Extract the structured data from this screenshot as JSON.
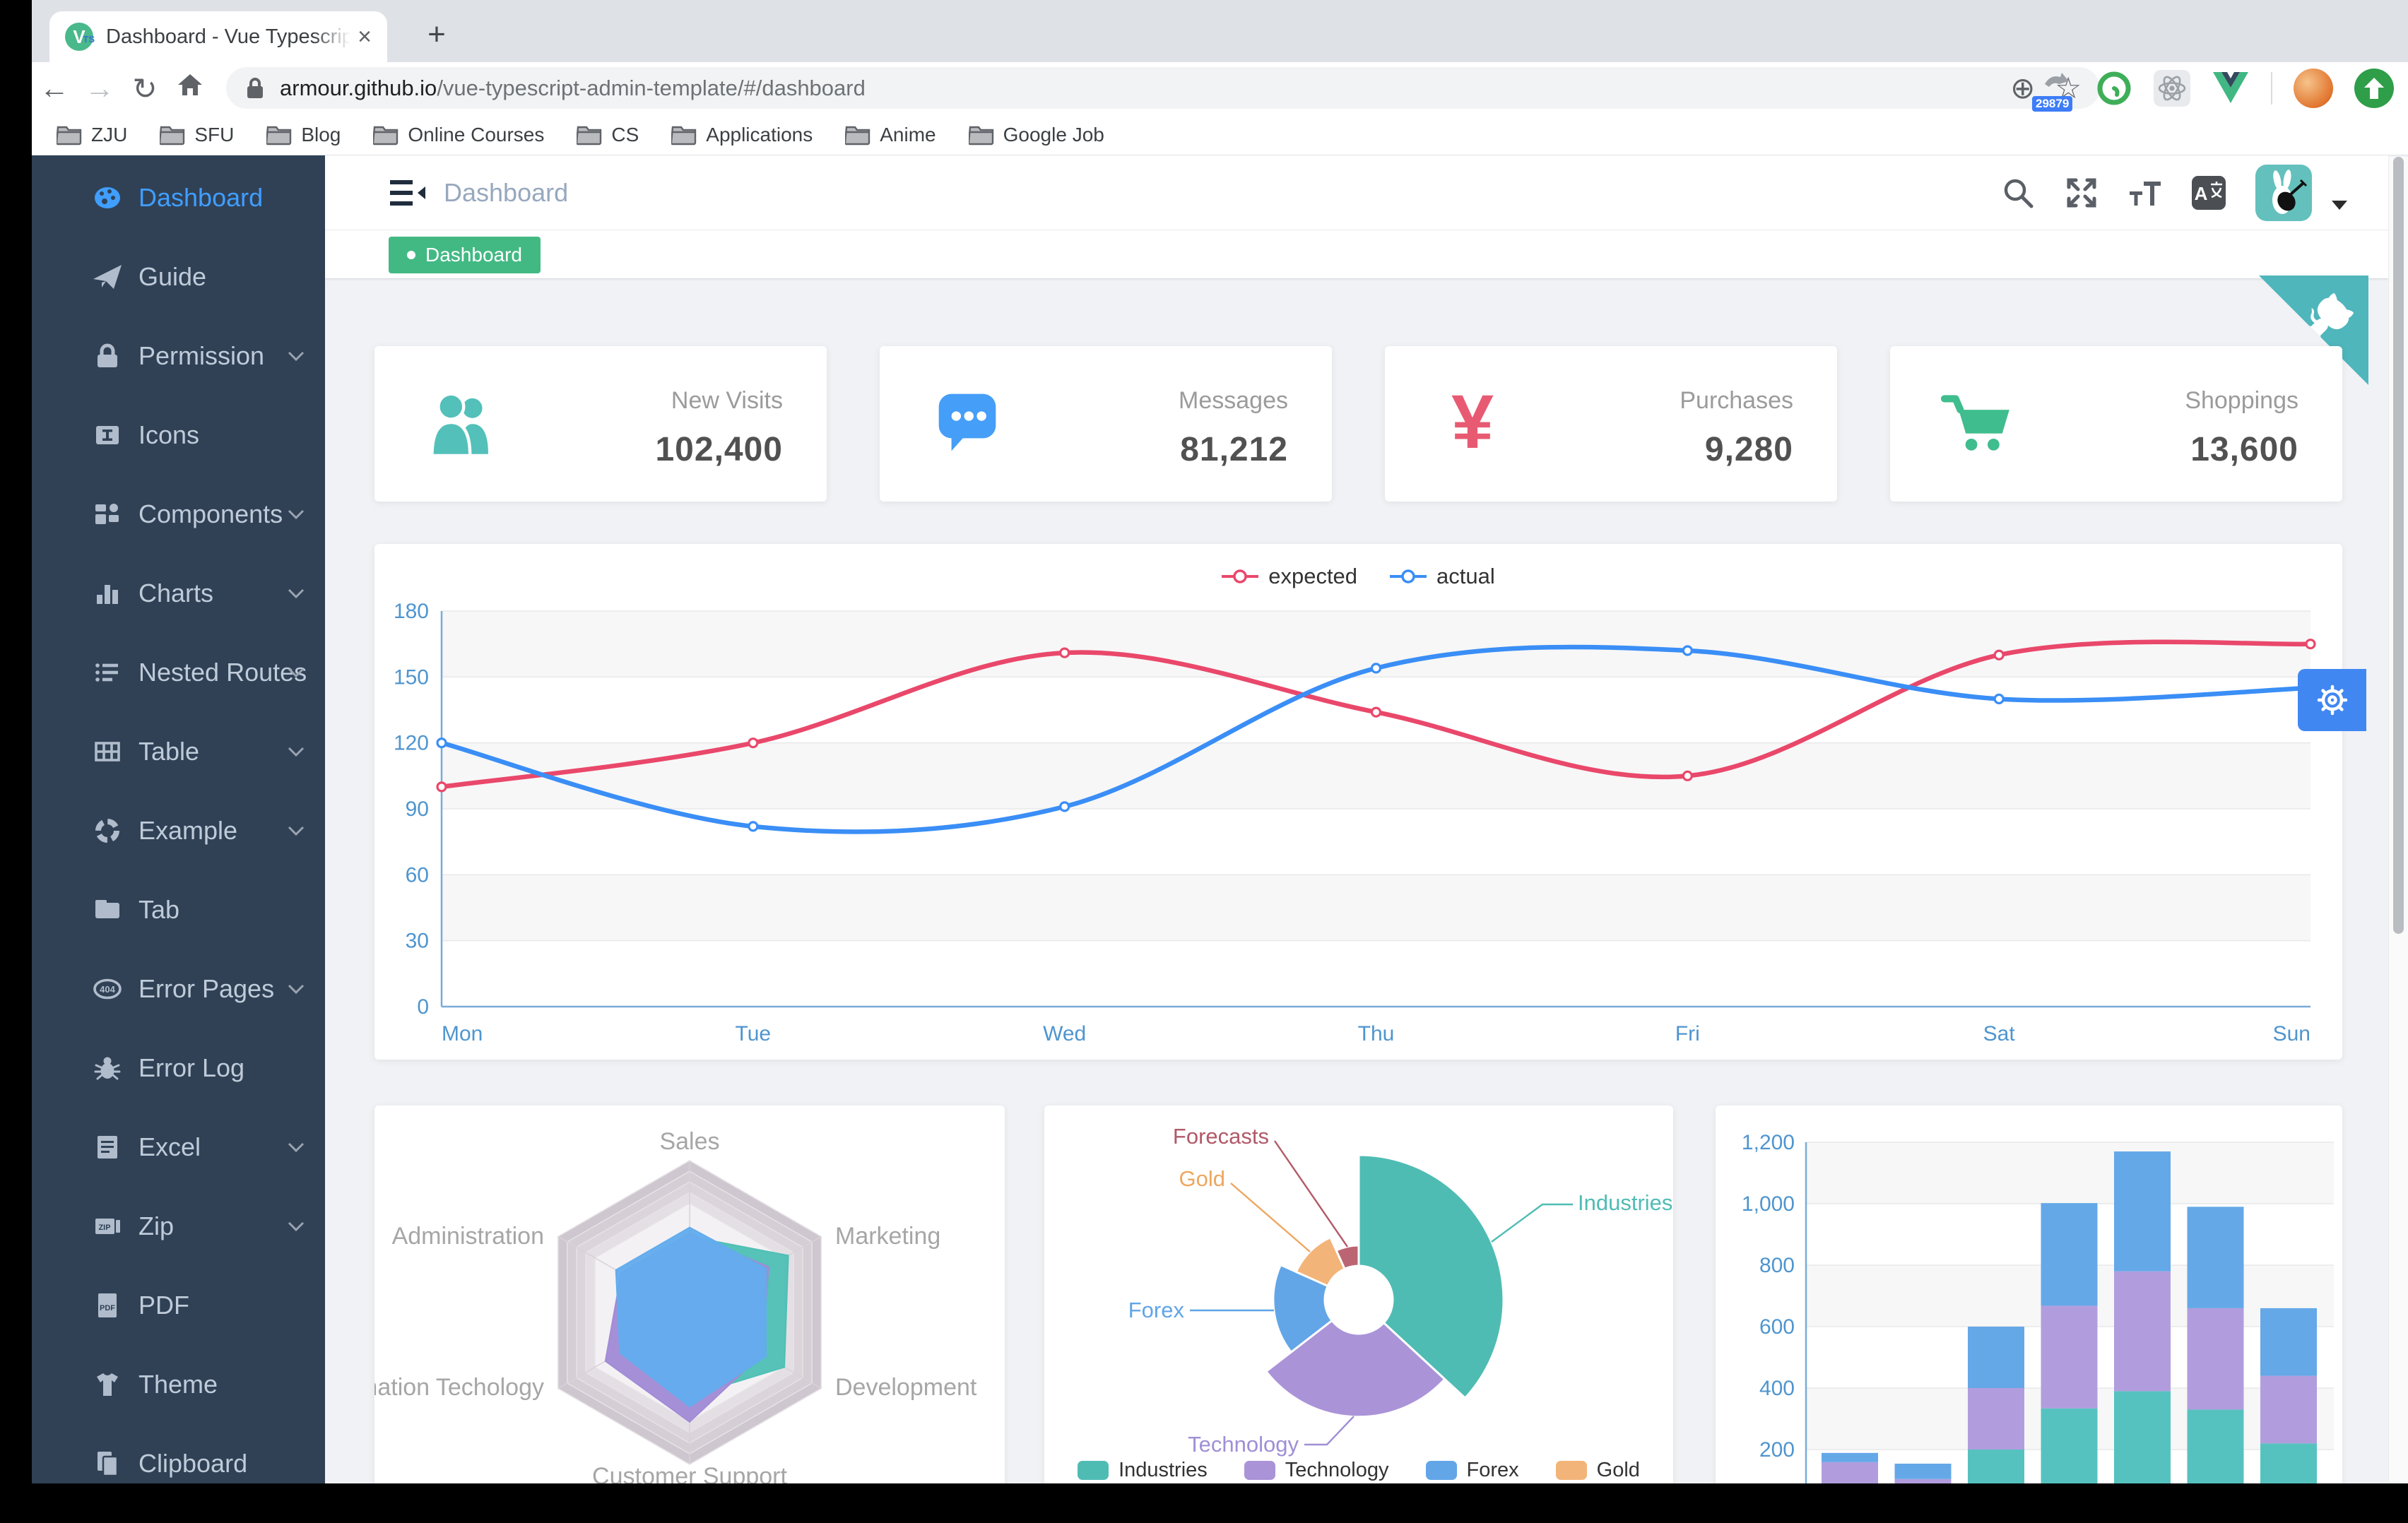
{
  "browser": {
    "tab_title": "Dashboard - Vue Typescript Ad",
    "tab_close_glyph": "×",
    "new_tab_glyph": "+",
    "back_glyph": "←",
    "forward_glyph": "→",
    "reload_glyph": "↻",
    "url_domain": "armour.github.io",
    "url_path": "/vue-typescript-admin-template/#/dashboard",
    "zoom_glyph": "⊕",
    "star_glyph": "☆",
    "extension_badge": "29879",
    "bookmarks": [
      "ZJU",
      "SFU",
      "Blog",
      "Online Courses",
      "CS",
      "Applications",
      "Anime",
      "Google Job"
    ]
  },
  "sidebar": {
    "items": [
      {
        "label": "Dashboard",
        "icon": "gauge-icon",
        "active": true,
        "arrow": false
      },
      {
        "label": "Guide",
        "icon": "paper-plane-icon",
        "active": false,
        "arrow": false
      },
      {
        "label": "Permission",
        "icon": "lock-icon",
        "active": false,
        "arrow": true
      },
      {
        "label": "Icons",
        "icon": "icon-box-icon",
        "active": false,
        "arrow": false
      },
      {
        "label": "Components",
        "icon": "components-icon",
        "active": false,
        "arrow": true
      },
      {
        "label": "Charts",
        "icon": "bar-chart-icon",
        "active": false,
        "arrow": true
      },
      {
        "label": "Nested Routes",
        "icon": "nested-list-icon",
        "active": false,
        "arrow": true
      },
      {
        "label": "Table",
        "icon": "table-icon",
        "active": false,
        "arrow": true
      },
      {
        "label": "Example",
        "icon": "ring-icon",
        "active": false,
        "arrow": true
      },
      {
        "label": "Tab",
        "icon": "folder-icon",
        "active": false,
        "arrow": false
      },
      {
        "label": "Error Pages",
        "icon": "error-404-icon",
        "active": false,
        "arrow": true
      },
      {
        "label": "Error Log",
        "icon": "bug-icon",
        "active": false,
        "arrow": false
      },
      {
        "label": "Excel",
        "icon": "document-icon",
        "active": false,
        "arrow": true
      },
      {
        "label": "Zip",
        "icon": "zip-icon",
        "active": false,
        "arrow": true
      },
      {
        "label": "PDF",
        "icon": "pdf-icon",
        "active": false,
        "arrow": false
      },
      {
        "label": "Theme",
        "icon": "tshirt-icon",
        "active": false,
        "arrow": false
      },
      {
        "label": "Clipboard",
        "icon": "clipboard-icon",
        "active": false,
        "arrow": false
      }
    ]
  },
  "navbar": {
    "breadcrumb": "Dashboard"
  },
  "tagsview": {
    "tags": [
      {
        "label": "Dashboard",
        "active": true
      }
    ]
  },
  "stats": [
    {
      "label": "New Visits",
      "value": "102,400",
      "icon": "people-icon",
      "color": "#53c0ba"
    },
    {
      "label": "Messages",
      "value": "81,212",
      "icon": "message-icon",
      "color": "#459ef7"
    },
    {
      "label": "Purchases",
      "value": "9,280",
      "icon": "money-yen-icon",
      "color": "#e85a72"
    },
    {
      "label": "Shoppings",
      "value": "13,600",
      "icon": "cart-icon",
      "color": "#3fbd8e"
    }
  ],
  "chart_data": [
    {
      "id": "weekly-line",
      "type": "line",
      "categories": [
        "Mon",
        "Tue",
        "Wed",
        "Thu",
        "Fri",
        "Sat",
        "Sun"
      ],
      "series": [
        {
          "name": "expected",
          "color": "#e9486b",
          "values": [
            100,
            120,
            161,
            134,
            105,
            160,
            165
          ]
        },
        {
          "name": "actual",
          "color": "#3a8ef6",
          "values": [
            120,
            82,
            91,
            154,
            162,
            140,
            145
          ]
        }
      ],
      "title": "",
      "xlabel": "",
      "ylabel": "",
      "ylim": [
        0,
        180
      ],
      "ytick_step": 30,
      "grid": true,
      "legend_position": "top",
      "axis_label_color": "#4f95cf"
    },
    {
      "id": "department-radar",
      "type": "radar",
      "indicators": [
        "Sales",
        "Marketing",
        "Development",
        "Customer Support",
        "Information Techology",
        "Administration"
      ],
      "series": [
        {
          "name": "teal",
          "color": "#4fc0b5",
          "values_pct": [
            50,
            75,
            72,
            55,
            50,
            50
          ]
        },
        {
          "name": "purple",
          "color": "#a18bd6",
          "values_pct": [
            52,
            60,
            55,
            72,
            64,
            52
          ]
        },
        {
          "name": "blue",
          "color": "#63aced",
          "values_pct": [
            56,
            58,
            58,
            62,
            53,
            56
          ]
        }
      ],
      "legend_position": "none"
    },
    {
      "id": "category-rose-pie",
      "type": "pie",
      "rose": true,
      "items": [
        {
          "name": "Industries",
          "value": 320,
          "color": "#4fbcb4",
          "label_color": "#4fbcb4"
        },
        {
          "name": "Technology",
          "value": 240,
          "color": "#ab93d8",
          "label_color": "#9f8fd6"
        },
        {
          "name": "Forex",
          "value": 149,
          "color": "#62a6e8",
          "label_color": "#5fa5e8"
        },
        {
          "name": "Gold",
          "value": 100,
          "color": "#f2b479",
          "label_color": "#eda75f"
        },
        {
          "name": "Forecasts",
          "value": 59,
          "color": "#bb6573",
          "label_color": "#b25968"
        }
      ],
      "legend": [
        "Industries",
        "Technology",
        "Forex",
        "Gold"
      ],
      "legend_position": "bottom"
    },
    {
      "id": "stacked-bar",
      "type": "bar",
      "stacked": true,
      "categories": [
        "",
        "",
        "",
        "",
        "",
        "",
        ""
      ],
      "series": [
        {
          "name": "teal",
          "color": "#56c2c0",
          "values": [
            79,
            52,
            200,
            334,
            390,
            330,
            220
          ]
        },
        {
          "name": "purple",
          "color": "#b19ddd",
          "values": [
            80,
            52,
            200,
            334,
            390,
            330,
            220
          ]
        },
        {
          "name": "blue",
          "color": "#64a8e8",
          "values": [
            30,
            50,
            200,
            334,
            390,
            330,
            220
          ]
        }
      ],
      "ylim": [
        0,
        1200
      ],
      "ytick_step": 200,
      "axis_label_color": "#4f95cf"
    }
  ]
}
